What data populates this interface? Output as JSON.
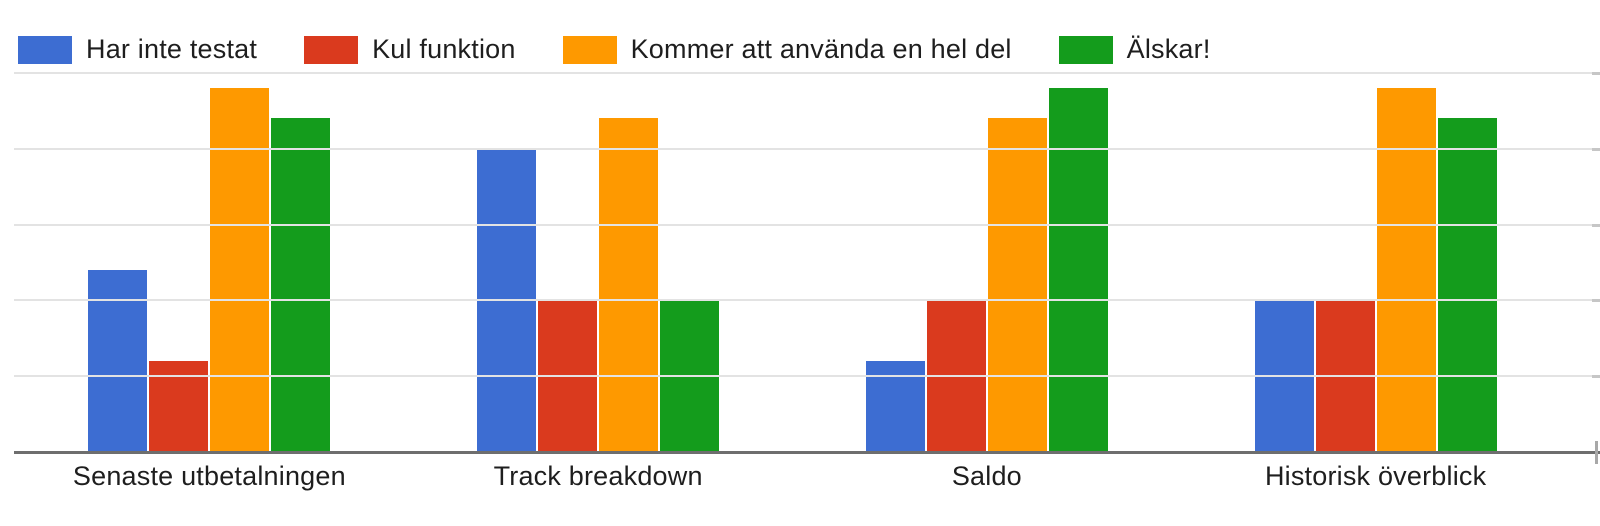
{
  "chart_data": {
    "type": "bar",
    "title": "",
    "categories": [
      "Senaste utbetalningen",
      "Track breakdown",
      "Saldo",
      "Historisk överblick"
    ],
    "series": [
      {
        "name": "Har inte testat",
        "color": "#3d6dd2",
        "values": [
          6,
          10,
          3,
          5
        ]
      },
      {
        "name": "Kul funktion",
        "color": "#da3a1e",
        "values": [
          3,
          5,
          5,
          5
        ]
      },
      {
        "name": "Kommer att använda en hel del",
        "color": "#fe9900",
        "values": [
          12,
          11,
          11,
          12
        ]
      },
      {
        "name": "Älskar!",
        "color": "#149c1c",
        "values": [
          11,
          5,
          12,
          11
        ]
      }
    ],
    "xlabel": "",
    "ylabel": "",
    "ylim": [
      0,
      12.5
    ],
    "gridline_step": 2.5,
    "grid": true,
    "y_axis_labels_visible": false,
    "legend_position": "top"
  },
  "colors": {
    "background": "#ffffff",
    "gridline": "#e3e3e3",
    "gridline_edge_tick": "#c6c6c6",
    "axis_line": "#6e6e6e",
    "axis_end_tick": "#a8a8a8",
    "text": "#1e1e1e"
  }
}
